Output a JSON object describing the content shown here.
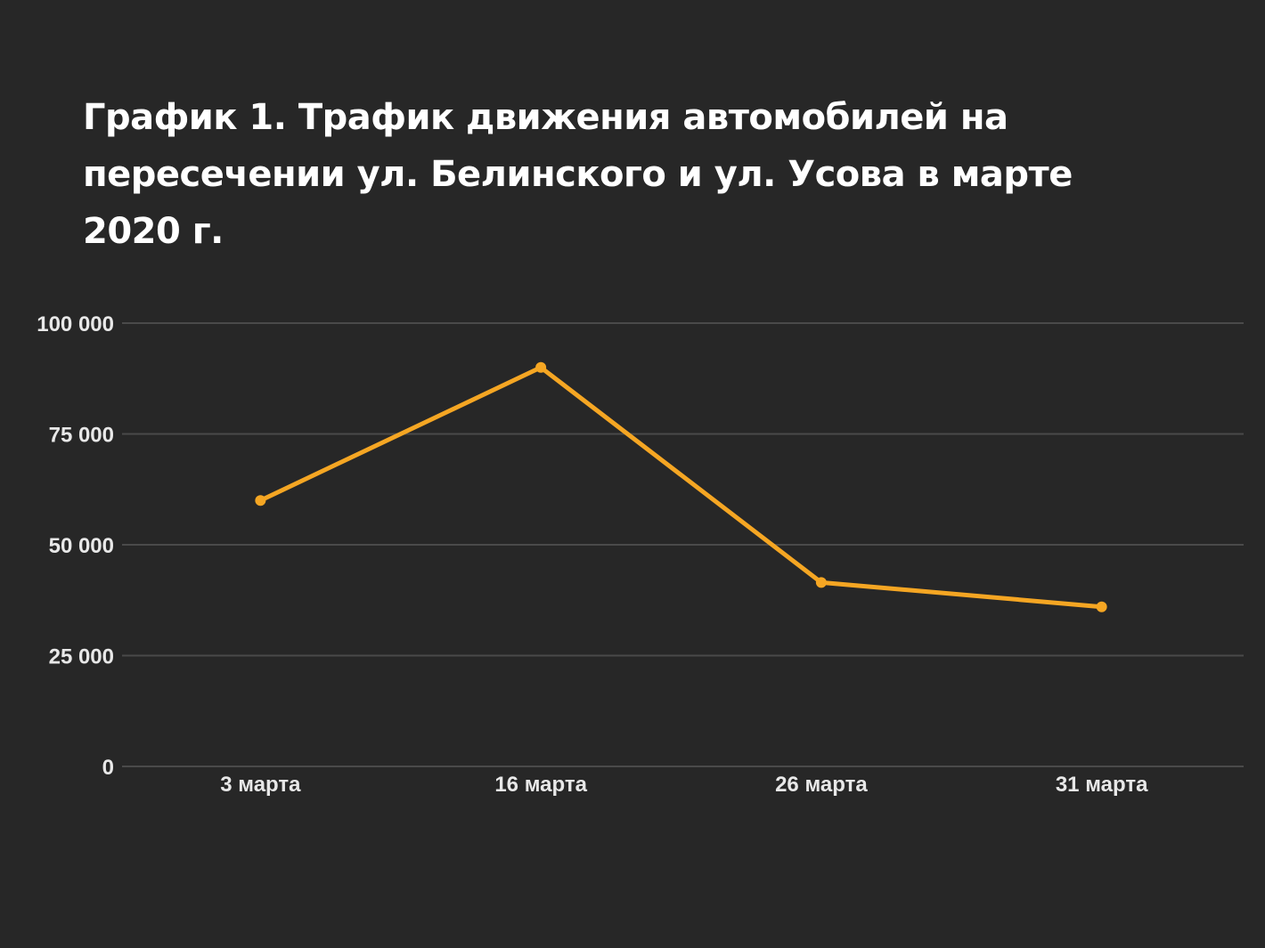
{
  "chart_data": {
    "type": "line",
    "title": "График 1. Трафик движения автомобилей на пересечении ул. Белинского и ул. Усова в марте 2020 г.",
    "xlabel": "",
    "ylabel": "",
    "categories": [
      "3 марта",
      "16 марта",
      "26 марта",
      "31 марта"
    ],
    "series": [
      {
        "name": "Трафик",
        "values": [
          60000,
          90000,
          41500,
          36000
        ],
        "color": "#f5a623"
      }
    ],
    "ylim": [
      0,
      100000
    ],
    "yticks": [
      0,
      25000,
      50000,
      75000,
      100000
    ],
    "ytick_labels": [
      "0",
      "25 000",
      "50 000",
      "75 000",
      "100 000"
    ],
    "grid": true,
    "legend": "none"
  }
}
